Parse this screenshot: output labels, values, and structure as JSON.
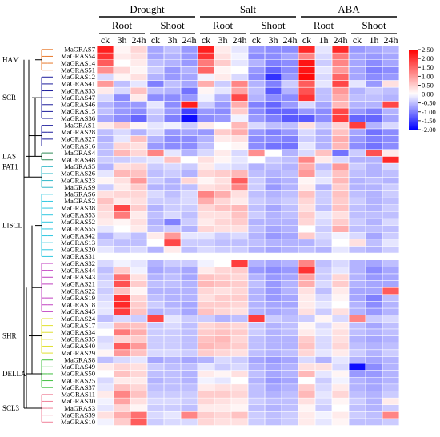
{
  "chart_data": {
    "type": "heatmap",
    "treatments": [
      {
        "name": "Drought",
        "tissues": [
          {
            "name": "Root",
            "timepoints": [
              "ck",
              "3h",
              "24h"
            ]
          },
          {
            "name": "Shoot",
            "timepoints": [
              "ck",
              "3h",
              "24h"
            ]
          }
        ]
      },
      {
        "name": "Salt",
        "tissues": [
          {
            "name": "Root",
            "timepoints": [
              "ck",
              "3h",
              "24h"
            ]
          },
          {
            "name": "Shoot",
            "timepoints": [
              "ck",
              "3h",
              "24h"
            ]
          }
        ]
      },
      {
        "name": "ABA",
        "tissues": [
          {
            "name": "Root",
            "timepoints": [
              "ck",
              "1h",
              "24h"
            ]
          },
          {
            "name": "Shoot",
            "timepoints": [
              "ck",
              "1h",
              "24h"
            ]
          }
        ]
      }
    ],
    "genes": [
      "MaGRAS7",
      "MaGRAS54",
      "MaGRAS14",
      "MaGRAS51",
      "MaGRAS12",
      "MaGRAS41",
      "MaGRAS33",
      "MaGRAS47",
      "MaGRAS46",
      "MaGRAS15",
      "MaGRAS36",
      "MaGRAS1",
      "MaGRAS28",
      "MaGRAS27",
      "MaGRAS16",
      "MaGRAS4",
      "MaGRAS48",
      "MaGRAS5",
      "MaGRAS26",
      "MaGRAS23",
      "MaGRAS9",
      "MaGRAS6",
      "MaGRAS2",
      "MaGRAS38",
      "MaGRAS53",
      "MaGRAS52",
      "MaGRAS55",
      "MaGRAS42",
      "MaGRAS13",
      "MaGRAS20",
      "MaGRAS31",
      "MaGRAS32",
      "MaGRAS44",
      "MaGRAS43",
      "MaGRAS21",
      "MaGRAS22",
      "MaGRAS19",
      "MaGRAS18",
      "MaGRAS45",
      "MaGRAS24",
      "MaGRAS17",
      "MaGRAS34",
      "MaGRAS35",
      "MaGRAS40",
      "MaGRAS29",
      "MaGRAS8",
      "MaGRAS49",
      "MaGRAS50",
      "MaGRAS25",
      "MaGRAS37",
      "MaGRAS11",
      "MaGRAS30",
      "MaGRAS3",
      "MaGRAS39",
      "MaGRAS10"
    ],
    "subfamilies": [
      {
        "name": "HAM",
        "from": 0,
        "to": 3,
        "color": "#e8782a"
      },
      {
        "name": "SCR",
        "from": 4,
        "to": 10,
        "color": "#1c1c9c"
      },
      {
        "name": "",
        "from": 11,
        "to": 14,
        "color": "#1c1c9c"
      },
      {
        "name": "LAS",
        "from": 15,
        "to": 16,
        "color": "#2e8b57"
      },
      {
        "name": "PAT1",
        "from": 17,
        "to": 20,
        "color": "#30b8c8"
      },
      {
        "name": "LISCL",
        "from": 21,
        "to": 30,
        "color": "#30c8e0"
      },
      {
        "name": "",
        "from": 31,
        "to": 38,
        "color": "#c040c0"
      },
      {
        "name": "SHR",
        "from": 39,
        "to": 44,
        "color": "#e0e030"
      },
      {
        "name": "DELLA",
        "from": 45,
        "to": 49,
        "color": "#40c040"
      },
      {
        "name": "SCL3",
        "from": 50,
        "to": 54,
        "color": "#f08098"
      }
    ],
    "values": [
      [
        2.2,
        0.1,
        0.4,
        -0.7,
        -0.5,
        -0.8,
        2.2,
        0.2,
        -0.2,
        -0.8,
        -0.9,
        -0.9,
        2.1,
        -0.2,
        2.1,
        -0.8,
        -0.7,
        -0.6
      ],
      [
        2.0,
        0.2,
        0.3,
        -0.7,
        -0.6,
        -0.8,
        2.0,
        0.3,
        -0.1,
        -0.9,
        -0.9,
        -0.7,
        1.2,
        -0.3,
        1.3,
        -0.7,
        -0.8,
        -0.7
      ],
      [
        1.6,
        0.0,
        0.2,
        -0.5,
        -0.6,
        -0.8,
        1.3,
        0.5,
        -0.2,
        -0.6,
        -1.0,
        -0.9,
        2.3,
        -0.4,
        1.2,
        -0.7,
        -0.9,
        -0.7
      ],
      [
        1.1,
        0.4,
        0.1,
        -0.4,
        -0.8,
        -0.6,
        1.5,
        0.1,
        0.0,
        -0.8,
        -1.2,
        -0.9,
        2.3,
        -0.2,
        1.0,
        -0.7,
        -1.0,
        -0.9
      ],
      [
        -0.3,
        0.1,
        0.3,
        -0.6,
        -0.8,
        -0.7,
        -0.1,
        0.2,
        -0.3,
        -0.9,
        -1.6,
        -0.8,
        2.4,
        -0.3,
        1.5,
        -0.7,
        -0.9,
        -0.8
      ],
      [
        1.0,
        -0.5,
        -0.2,
        -1.0,
        -0.5,
        -0.7,
        0.8,
        -0.4,
        1.2,
        -0.6,
        -1.0,
        -0.4,
        1.6,
        -0.2,
        1.8,
        -0.2,
        -0.8,
        0.3
      ],
      [
        0.2,
        -0.3,
        0.6,
        -0.5,
        -0.6,
        -1.1,
        0.1,
        -0.2,
        0.9,
        -0.5,
        -1.3,
        -0.6,
        1.7,
        -0.5,
        1.0,
        -0.6,
        -0.4,
        -0.5
      ],
      [
        -0.3,
        -0.9,
        0.2,
        -0.9,
        -0.9,
        -0.8,
        -0.1,
        -0.6,
        1.8,
        -0.6,
        -0.9,
        -0.9,
        2.0,
        -0.5,
        0.8,
        -0.5,
        -0.5,
        -0.6
      ],
      [
        -0.6,
        -0.8,
        -0.8,
        -0.2,
        -0.9,
        2.2,
        -0.4,
        -0.8,
        0.8,
        -1.0,
        -1.2,
        -0.8,
        -0.3,
        -0.7,
        0.7,
        -0.6,
        -0.6,
        1.8
      ],
      [
        -0.5,
        -0.8,
        -0.9,
        -0.4,
        -0.8,
        -1.5,
        -0.8,
        -0.9,
        0.5,
        -0.9,
        -1.2,
        -1.2,
        -0.8,
        -0.9,
        1.8,
        -0.8,
        -1.0,
        -0.6
      ],
      [
        -0.7,
        -0.9,
        -1.2,
        -0.5,
        -1.0,
        -1.9,
        -0.9,
        -0.8,
        -0.1,
        -0.8,
        -1.0,
        -1.3,
        -1.3,
        -0.9,
        1.9,
        -1.2,
        -1.2,
        -0.7
      ],
      [
        0.2,
        0.5,
        0.1,
        -0.2,
        -0.1,
        -0.4,
        0.2,
        0.0,
        0.7,
        -0.3,
        -0.5,
        -0.5,
        0.3,
        -0.4,
        0.4,
        1.9,
        -0.6,
        -0.3
      ],
      [
        -0.5,
        -0.3,
        -0.6,
        -0.3,
        -0.8,
        -0.7,
        -0.8,
        0.5,
        0.8,
        -0.8,
        -1.0,
        -0.8,
        -0.3,
        -0.6,
        0.6,
        -0.7,
        -1.1,
        -0.9
      ],
      [
        -0.6,
        -0.2,
        0.6,
        -0.6,
        -0.9,
        -0.9,
        -0.6,
        0.2,
        0.3,
        -0.9,
        -0.9,
        -1.0,
        -0.4,
        -0.6,
        0.8,
        -0.8,
        -1.0,
        -0.9
      ],
      [
        -0.5,
        0.4,
        0.3,
        -0.8,
        -0.9,
        -0.9,
        -0.5,
        0.0,
        0.1,
        -0.9,
        -1.1,
        -1.1,
        -0.2,
        -0.6,
        0.7,
        -0.9,
        -1.1,
        -0.9
      ],
      [
        -0.5,
        0.7,
        0.4,
        1.2,
        -0.2,
        -0.6,
        -0.3,
        0.2,
        -0.3,
        1.1,
        0.0,
        -0.6,
        -0.3,
        0.6,
        -1.1,
        -0.4,
        1.7,
        0.2
      ],
      [
        -0.4,
        -0.4,
        -0.3,
        -0.2,
        0.6,
        0.0,
        0.3,
        0.1,
        -0.2,
        0.0,
        -0.4,
        -0.5,
        1.2,
        0.2,
        -0.3,
        -0.6,
        -0.6,
        2.1
      ],
      [
        -0.6,
        0.3,
        0.4,
        -0.4,
        -0.3,
        -0.4,
        0.2,
        -0.2,
        -0.3,
        -0.6,
        -0.5,
        -0.6,
        0.8,
        -0.5,
        1.0,
        -0.4,
        -0.6,
        -0.3
      ],
      [
        -0.2,
        0.7,
        0.6,
        -0.5,
        -0.4,
        -0.6,
        0.4,
        0.5,
        0.7,
        -0.5,
        -0.6,
        -0.5,
        1.0,
        -0.3,
        0.6,
        -0.5,
        -0.6,
        -0.5
      ],
      [
        0.1,
        0.3,
        1.0,
        -0.4,
        -0.6,
        0.4,
        0.1,
        0.3,
        1.6,
        -0.4,
        -0.7,
        -0.6,
        0.1,
        -0.2,
        0.7,
        -0.6,
        -0.5,
        -0.6
      ],
      [
        -0.4,
        0.2,
        0.5,
        -0.6,
        -0.6,
        -0.5,
        0.3,
        0.4,
        1.2,
        -0.4,
        -0.8,
        -0.6,
        0.2,
        -0.6,
        0.5,
        -0.6,
        -0.6,
        -0.4
      ],
      [
        0.3,
        0.4,
        0.4,
        -0.3,
        -0.5,
        -0.3,
        1.2,
        0.8,
        0.3,
        -0.5,
        -0.6,
        -0.5,
        0.6,
        -0.4,
        0.6,
        -0.5,
        -0.6,
        -0.4
      ],
      [
        0.6,
        0.2,
        0.3,
        -0.4,
        -0.4,
        -0.3,
        0.8,
        0.4,
        0.2,
        -0.4,
        -0.5,
        -0.4,
        0.4,
        -0.4,
        0.5,
        -0.4,
        -0.6,
        -0.5
      ],
      [
        0.4,
        1.8,
        0.5,
        -0.6,
        -0.4,
        -0.4,
        0.4,
        0.6,
        0.7,
        -0.5,
        -0.7,
        -0.5,
        0.3,
        -0.5,
        0.6,
        -0.5,
        -0.6,
        -0.4
      ],
      [
        0.3,
        1.3,
        0.2,
        -0.5,
        -0.3,
        -0.5,
        0.3,
        0.3,
        0.6,
        -0.4,
        -0.6,
        -0.5,
        0.5,
        -0.2,
        0.3,
        -0.5,
        -0.5,
        -0.5
      ],
      [
        0.2,
        0.1,
        0.3,
        -0.6,
        -1.0,
        -0.4,
        0.2,
        0.4,
        0.5,
        -0.6,
        -0.6,
        -0.6,
        0.4,
        -0.3,
        0.5,
        -0.4,
        -0.6,
        -0.3
      ],
      [
        -0.2,
        0.0,
        0.2,
        -0.5,
        -0.4,
        -0.6,
        0.4,
        0.3,
        0.3,
        -0.5,
        -0.7,
        -0.6,
        0.0,
        -0.4,
        0.8,
        -0.5,
        -0.5,
        -0.5
      ],
      [
        -0.6,
        -0.3,
        -0.5,
        0.2,
        1.0,
        -0.2,
        -0.2,
        -0.4,
        -0.3,
        -0.6,
        -0.8,
        -0.7,
        0.5,
        -0.3,
        -0.1,
        -0.3,
        -0.7,
        -0.4
      ],
      [
        -0.4,
        -0.5,
        -0.5,
        0.0,
        1.8,
        -0.4,
        -0.4,
        -0.5,
        -0.5,
        -0.5,
        -0.6,
        -0.6,
        -0.6,
        -0.4,
        0.0,
        0.3,
        -0.5,
        -0.2
      ],
      [
        -0.2,
        -0.4,
        -0.3,
        -0.6,
        0.2,
        -0.5,
        -0.3,
        -0.4,
        -0.4,
        -0.6,
        -0.7,
        -0.6,
        -0.5,
        -0.6,
        -0.2,
        -0.5,
        -0.6,
        -0.4
      ],
      [
        0.0,
        0.0,
        0.0,
        0.0,
        0.0,
        0.0,
        0.0,
        0.0,
        0.0,
        0.0,
        0.0,
        0.0,
        0.0,
        0.0,
        0.0,
        0.0,
        0.0,
        0.0
      ],
      [
        -0.3,
        -0.1,
        -0.2,
        -0.6,
        -0.4,
        -0.4,
        -0.1,
        0.0,
        1.9,
        -0.6,
        -0.7,
        -0.6,
        1.2,
        -0.5,
        -0.3,
        -0.6,
        -0.7,
        -0.5
      ],
      [
        -0.5,
        0.5,
        -0.1,
        -0.7,
        -0.6,
        -0.7,
        0.2,
        0.4,
        0.5,
        -0.8,
        -0.9,
        -0.8,
        2.0,
        -0.4,
        -0.2,
        -0.6,
        -0.9,
        -0.7
      ],
      [
        -0.4,
        1.4,
        0.3,
        -0.6,
        -0.5,
        -0.7,
        0.6,
        0.5,
        0.4,
        -0.6,
        -0.8,
        -0.7,
        0.9,
        -0.4,
        0.4,
        -0.6,
        -0.8,
        -0.7
      ],
      [
        -0.3,
        1.7,
        0.5,
        -0.5,
        -0.5,
        -0.6,
        0.7,
        0.6,
        0.5,
        -0.5,
        -0.8,
        -0.6,
        0.8,
        -0.3,
        0.5,
        -0.6,
        -0.7,
        -0.7
      ],
      [
        -0.4,
        0.6,
        0.1,
        -0.6,
        -0.6,
        -0.6,
        0.4,
        0.3,
        0.4,
        -0.6,
        -0.8,
        -0.6,
        0.3,
        -0.5,
        0.2,
        -0.7,
        -0.7,
        1.6
      ],
      [
        -0.3,
        2.0,
        0.4,
        -0.5,
        -0.6,
        -0.6,
        0.3,
        0.5,
        0.5,
        -0.6,
        -0.8,
        -0.7,
        0.2,
        -0.3,
        0.1,
        -0.7,
        -1.0,
        -0.5
      ],
      [
        -0.2,
        2.1,
        0.5,
        -0.4,
        -0.6,
        -0.7,
        0.5,
        0.5,
        0.4,
        -0.6,
        -0.7,
        -0.7,
        0.2,
        -0.2,
        0.0,
        -0.6,
        -0.9,
        -0.6
      ],
      [
        -0.2,
        1.9,
        0.6,
        -0.6,
        -0.5,
        -0.7,
        0.6,
        0.4,
        0.3,
        -0.6,
        -0.7,
        -0.6,
        0.3,
        -0.4,
        0.3,
        -0.6,
        -0.8,
        -0.6
      ],
      [
        -0.5,
        -0.3,
        -0.4,
        1.8,
        -0.2,
        -0.4,
        -0.4,
        -0.6,
        -0.5,
        1.9,
        -0.4,
        -0.5,
        -0.4,
        0.1,
        -0.3,
        1.2,
        -0.4,
        -0.3
      ],
      [
        -0.2,
        0.7,
        0.6,
        -0.4,
        -0.3,
        -0.5,
        0.4,
        0.5,
        0.4,
        -0.4,
        -0.6,
        -0.5,
        0.1,
        -0.3,
        0.2,
        -0.5,
        -0.7,
        -0.5
      ],
      [
        0.0,
        1.3,
        0.8,
        -0.4,
        -0.4,
        -0.5,
        0.5,
        0.6,
        0.5,
        -0.4,
        -0.6,
        -0.5,
        0.2,
        -0.2,
        0.3,
        -0.5,
        -0.6,
        -0.5
      ],
      [
        -0.3,
        0.4,
        0.5,
        -0.4,
        -0.4,
        -0.5,
        0.6,
        0.7,
        0.4,
        -0.5,
        -0.6,
        -0.6,
        0.5,
        -0.3,
        0.3,
        -0.6,
        -0.7,
        -0.6
      ],
      [
        -0.2,
        1.6,
        1.0,
        -0.4,
        -0.4,
        -0.5,
        0.7,
        0.6,
        0.5,
        -0.5,
        -0.6,
        -0.6,
        0.6,
        -0.3,
        0.4,
        -0.5,
        -0.6,
        -0.5
      ],
      [
        0.1,
        1.0,
        0.6,
        -0.3,
        -0.3,
        -0.4,
        0.5,
        0.4,
        0.3,
        -0.5,
        -0.6,
        -0.5,
        0.4,
        -0.2,
        0.2,
        -0.4,
        -0.6,
        -0.4
      ],
      [
        -0.5,
        -0.3,
        -0.2,
        -0.7,
        -0.6,
        -0.7,
        -0.6,
        -0.3,
        -0.4,
        -0.7,
        -0.8,
        -0.7,
        -0.3,
        -0.6,
        -0.2,
        -0.6,
        -0.7,
        -0.6
      ],
      [
        0.2,
        0.4,
        0.3,
        -0.4,
        -0.5,
        -0.5,
        -0.2,
        -0.4,
        -0.3,
        -0.6,
        -0.7,
        -0.6,
        0.3,
        0.3,
        -0.3,
        -1.9,
        -0.9,
        -0.6
      ],
      [
        0.0,
        0.6,
        0.4,
        -0.5,
        -0.5,
        -0.6,
        0.2,
        0.1,
        0.3,
        -0.5,
        -0.7,
        -0.6,
        0.7,
        -0.2,
        0.1,
        -0.8,
        -0.8,
        -0.6
      ],
      [
        -0.3,
        0.2,
        0.2,
        -0.6,
        -0.5,
        -0.6,
        -0.1,
        -0.2,
        0.0,
        -0.6,
        -0.8,
        -0.7,
        0.0,
        -0.4,
        -0.1,
        -0.6,
        -0.7,
        -0.6
      ],
      [
        -0.2,
        0.6,
        0.4,
        -0.5,
        -0.5,
        -0.5,
        0.2,
        0.3,
        0.3,
        -0.5,
        -0.7,
        -0.6,
        0.5,
        -0.3,
        0.2,
        -0.6,
        -0.7,
        -0.5
      ],
      [
        0.2,
        1.2,
        0.6,
        -0.4,
        -0.4,
        -0.4,
        0.5,
        0.5,
        0.4,
        -0.5,
        -0.6,
        -0.5,
        0.7,
        -0.2,
        0.4,
        -0.5,
        -0.6,
        -0.4
      ],
      [
        -0.1,
        0.9,
        0.3,
        -0.3,
        -0.3,
        -0.4,
        0.4,
        0.3,
        0.2,
        -0.4,
        -0.5,
        -0.5,
        0.3,
        -0.3,
        0.1,
        -0.4,
        -0.6,
        0.2
      ],
      [
        -0.2,
        0.4,
        0.1,
        -0.4,
        -0.4,
        -0.5,
        0.2,
        0.2,
        0.1,
        -0.5,
        -0.6,
        -0.5,
        0.1,
        -0.4,
        0.0,
        -0.5,
        -0.6,
        -0.4
      ],
      [
        0.3,
        0.8,
        1.4,
        -0.3,
        -0.2,
        1.2,
        0.5,
        0.4,
        0.6,
        -0.4,
        -0.5,
        -0.4,
        0.2,
        -0.1,
        0.2,
        -0.4,
        -0.5,
        1.2
      ],
      [
        -0.1,
        0.5,
        1.6,
        -0.4,
        -0.3,
        -0.3,
        0.4,
        0.3,
        0.3,
        -0.4,
        -0.5,
        -0.4,
        0.2,
        -0.2,
        0.1,
        -0.5,
        -0.5,
        -0.4
      ]
    ],
    "color_scale": {
      "min": -2.0,
      "max": 2.5,
      "low": "#0000ff",
      "mid": "#ffffff",
      "high": "#ff0000"
    },
    "colorbar_ticks": [
      "2.50",
      "2.00",
      "1.50",
      "1.00",
      "0.50",
      "0.00",
      "-0.50",
      "-1.00",
      "-1.50",
      "-2.00"
    ],
    "colorbar_tick_values": [
      2.5,
      2.0,
      1.5,
      1.0,
      0.5,
      0.0,
      -0.5,
      -1.0,
      -1.5,
      -2.0
    ]
  }
}
